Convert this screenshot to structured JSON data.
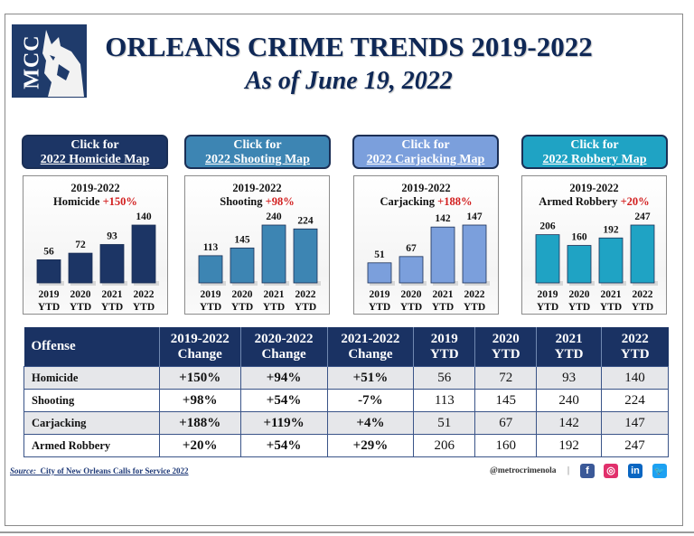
{
  "header": {
    "logo_text": "MCC",
    "title": "ORLEANS CRIME TRENDS 2019-2022",
    "subtitle": "As of June 19, 2022"
  },
  "cards": [
    {
      "key": "homicide",
      "button_line1": "Click for",
      "button_line2": "2022 Homicide Map",
      "button_color": "#1c3565",
      "bar_color": "#1c3565",
      "panel_title": "2019-2022",
      "panel_crime": "Homicide",
      "panel_change": "+150%"
    },
    {
      "key": "shooting",
      "button_line1": "Click for",
      "button_line2": "2022 Shooting Map",
      "button_color": "#3d85b3",
      "bar_color": "#3d85b3",
      "panel_title": "2019-2022",
      "panel_crime": "Shooting",
      "panel_change": "+98%"
    },
    {
      "key": "carjacking",
      "button_line1": "Click for",
      "button_line2": "2022 Carjacking Map",
      "button_color": "#7b9fdc",
      "bar_color": "#7b9fdc",
      "panel_title": "2019-2022",
      "panel_crime": "Carjacking",
      "panel_change": "+188%"
    },
    {
      "key": "robbery",
      "button_line1": "Click for",
      "button_line2": "2022 Robbery Map",
      "button_color": "#1fa3c4",
      "bar_color": "#1fa3c4",
      "panel_title": "2019-2022",
      "panel_crime": "Armed Robbery",
      "panel_change": "+20%"
    }
  ],
  "chart_data": [
    {
      "type": "bar",
      "title": "2019-2022 Homicide +150%",
      "categories": [
        "2019 YTD",
        "2020 YTD",
        "2021 YTD",
        "2022 YTD"
      ],
      "values": [
        56,
        72,
        93,
        140
      ]
    },
    {
      "type": "bar",
      "title": "2019-2022 Shooting +98%",
      "categories": [
        "2019 YTD",
        "2020 YTD",
        "2021 YTD",
        "2022 YTD"
      ],
      "values": [
        113,
        145,
        240,
        224
      ]
    },
    {
      "type": "bar",
      "title": "2019-2022 Carjacking +188%",
      "categories": [
        "2019 YTD",
        "2020 YTD",
        "2021 YTD",
        "2022 YTD"
      ],
      "values": [
        51,
        67,
        142,
        147
      ]
    },
    {
      "type": "bar",
      "title": "2019-2022 Armed Robbery +20%",
      "categories": [
        "2019 YTD",
        "2020 YTD",
        "2021 YTD",
        "2022 YTD"
      ],
      "values": [
        206,
        160,
        192,
        247
      ]
    }
  ],
  "table": {
    "headers": [
      "Offense",
      "2019-2022 Change",
      "2020-2022 Change",
      "2021-2022 Change",
      "2019 YTD",
      "2020 YTD",
      "2021 YTD",
      "2022 YTD"
    ],
    "header_lines": [
      [
        "Offense"
      ],
      [
        "2019-2022",
        "Change"
      ],
      [
        "2020-2022",
        "Change"
      ],
      [
        "2021-2022",
        "Change"
      ],
      [
        "2019",
        "YTD"
      ],
      [
        "2020",
        "YTD"
      ],
      [
        "2021",
        "YTD"
      ],
      [
        "2022",
        "YTD"
      ]
    ],
    "rows": [
      {
        "offense": "Homicide",
        "changes": [
          "+150%",
          "+94%",
          "+51%"
        ],
        "ytd": [
          "56",
          "72",
          "93",
          "140"
        ]
      },
      {
        "offense": "Shooting",
        "changes": [
          "+98%",
          "+54%",
          "-7%"
        ],
        "ytd": [
          "113",
          "145",
          "240",
          "224"
        ]
      },
      {
        "offense": "Carjacking",
        "changes": [
          "+188%",
          "+119%",
          "+4%"
        ],
        "ytd": [
          "51",
          "67",
          "142",
          "147"
        ]
      },
      {
        "offense": "Armed Robbery",
        "changes": [
          "+20%",
          "+54%",
          "+29%"
        ],
        "ytd": [
          "206",
          "160",
          "192",
          "247"
        ]
      }
    ]
  },
  "footer": {
    "source_label": "Source:",
    "source_text": "City of New Orleans Calls for Service 2022",
    "handle": "@metrocrimenola",
    "separator": "|",
    "social": [
      {
        "name": "facebook",
        "glyph": "f",
        "color": "#3b5998"
      },
      {
        "name": "instagram",
        "glyph": "◎",
        "color": "#e1306c"
      },
      {
        "name": "linkedin",
        "glyph": "in",
        "color": "#0a66c2"
      },
      {
        "name": "twitter",
        "glyph": "🐦",
        "color": "#1da1f2"
      }
    ]
  }
}
